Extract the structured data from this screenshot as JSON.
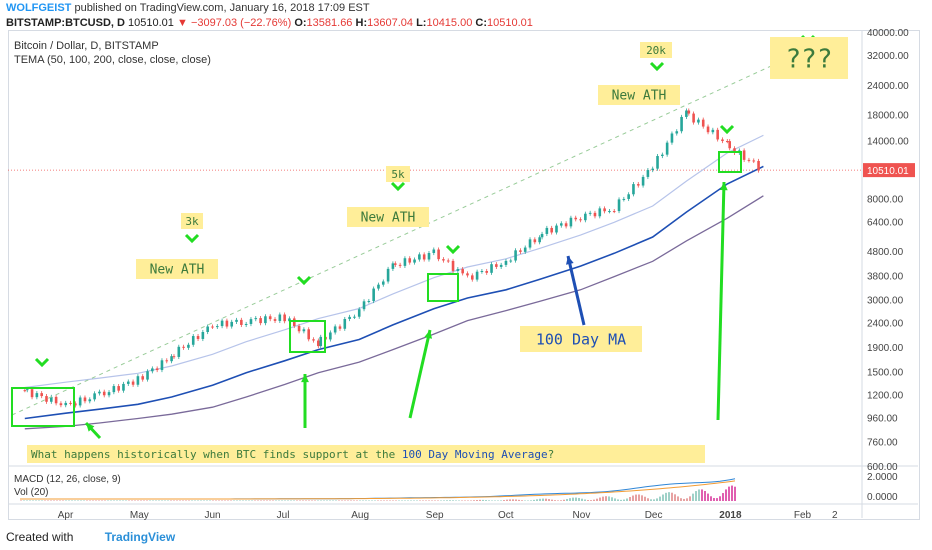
{
  "header": {
    "author": "WOLFGEIST",
    "published": "published on TradingView.com, January 16, 2018 17:09 EST",
    "symbol": "BITSTAMP:BTCUSD, D",
    "last": "10510.01",
    "change": "−3097.03 (−22.76%)",
    "o_label": "O:",
    "o": "13581.66",
    "h_label": "H:",
    "h": "13607.04",
    "l_label": "L:",
    "l": "10415.00",
    "c_label": "C:",
    "c": "10510.01"
  },
  "legend": {
    "title": "Bitcoin / Dollar, D, BITSTAMP",
    "indicator": "TEMA (50, 100, 200, close, close, close)"
  },
  "annotations": {
    "ath1": "New ATH",
    "ath2": "New ATH",
    "ath3": "New ATH",
    "k3": "3k",
    "k5": "5k",
    "k20": "20k",
    "q": "???",
    "ma": "100 Day MA",
    "bottom_prefix": "What happens historically when BTC finds support at the ",
    "bottom_hl": "100 Day Moving Average",
    "bottom_suffix": "?"
  },
  "macd": {
    "label": "MACD (12, 26, close, 9)",
    "vol": "Vol (20)",
    "ticks": [
      "2.0000",
      "0.0000"
    ]
  },
  "price_axis": [
    "40000.00",
    "32000.00",
    "24000.00",
    "18000.00",
    "14000.00",
    "10510.01",
    "8000.00",
    "6400.00",
    "4800.00",
    "3800.00",
    "3000.00",
    "2400.00",
    "1900.00",
    "1500.00",
    "1200.00",
    "960.00",
    "760.00",
    "600.00"
  ],
  "time_axis": [
    "Apr",
    "May",
    "Jun",
    "Jul",
    "Aug",
    "Sep",
    "Oct",
    "Nov",
    "Dec",
    "2018",
    "Feb",
    "2"
  ],
  "footer": {
    "created": "Created with",
    "brand": "TradingView"
  },
  "colors": {
    "up": "#26a69a",
    "down": "#ef5350",
    "ma_dark": "#1e4fb4",
    "ma_light": "#b7c4ea",
    "ma_long": "#7a6a9a",
    "box": "#22dd22",
    "arrow": "#22dd22",
    "note_bg": "#ffee99",
    "note_text": "#3a8a3a",
    "price_tag": "#ef5350"
  },
  "chart_data": {
    "type": "candlestick",
    "period": "daily",
    "scale": "log",
    "price_range": [
      600,
      40000
    ],
    "x": [
      "2017-03-15",
      "2017-04-01",
      "2017-04-15",
      "2017-05-01",
      "2017-05-15",
      "2017-06-01",
      "2017-06-15",
      "2017-07-01",
      "2017-07-15",
      "2017-08-01",
      "2017-08-15",
      "2017-09-01",
      "2017-09-15",
      "2017-10-01",
      "2017-10-15",
      "2017-11-01",
      "2017-11-15",
      "2017-12-01",
      "2017-12-15",
      "2018-01-01",
      "2018-01-16"
    ],
    "close": [
      1250,
      1080,
      1190,
      1390,
      1720,
      2340,
      2450,
      2520,
      1950,
      2720,
      4150,
      4710,
      3700,
      4350,
      5600,
      6700,
      7300,
      10800,
      18500,
      13500,
      10510.01
    ],
    "ma_100_day": [
      950,
      1000,
      1040,
      1090,
      1170,
      1310,
      1480,
      1660,
      1850,
      2040,
      2350,
      2750,
      3050,
      3300,
      3650,
      4150,
      4700,
      5500,
      7000,
      9200,
      10900
    ],
    "ma_long": [
      860,
      880,
      910,
      950,
      990,
      1060,
      1170,
      1320,
      1480,
      1640,
      1850,
      2150,
      2450,
      2700,
      2950,
      3300,
      3750,
      4350,
      5300,
      6600,
      8200
    ]
  }
}
